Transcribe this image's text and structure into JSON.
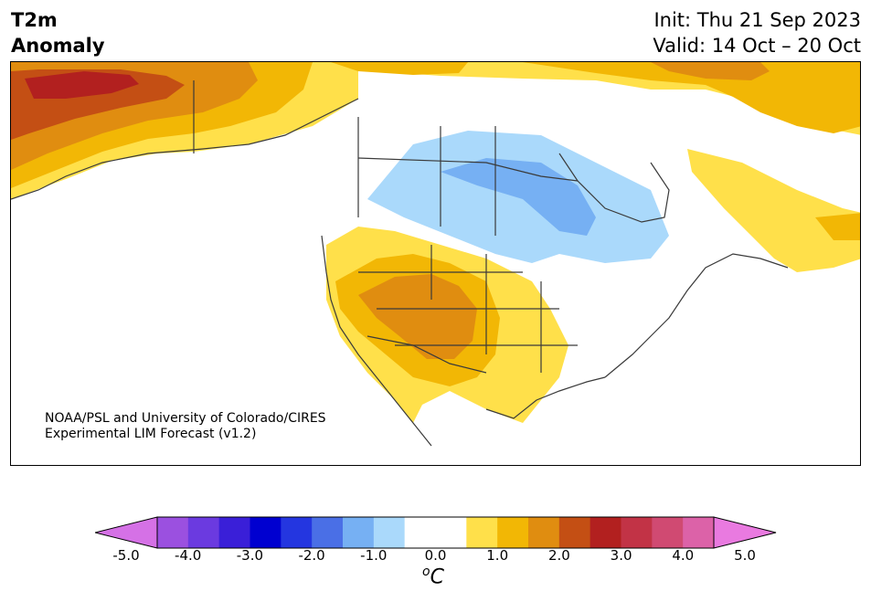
{
  "title": {
    "line1": "T2m",
    "line2": "Anomaly",
    "init": "Init: Thu 21 Sep 2023",
    "valid": "Valid: 14 Oct – 20 Oct"
  },
  "credit": {
    "line1": "NOAA/PSL and University of Colorado/CIRES",
    "line2": "Experimental LIM Forecast (v1.2)"
  },
  "colorbar": {
    "units_base": "C",
    "units_sup": "o",
    "ticks": [
      "-5.0",
      "-4.0",
      "-3.0",
      "-2.0",
      "-1.0",
      "0.0",
      "1.0",
      "2.0",
      "3.0",
      "4.0",
      "5.0"
    ],
    "under_color": "#d571e6",
    "over_color": "#e97ae0",
    "colors": [
      "#d571e6",
      "#9b50e0",
      "#6b3ae0",
      "#3a1fd8",
      "#0000d0",
      "#2436e0",
      "#4a6fe6",
      "#76b0f3",
      "#aad9fb",
      "#ffffff",
      "#ffffff",
      "#ffe04a",
      "#f2b705",
      "#e08d10",
      "#c44f14",
      "#b2201f",
      "#c23346",
      "#d04a72",
      "#dc62a8",
      "#e97ae0"
    ]
  },
  "map": {
    "region": "North America",
    "variable": "2m temperature anomaly",
    "features": [
      "warm anomaly Alaska",
      "warm anomaly Southwest US",
      "warm anomaly Canadian Arctic",
      "warm anomaly Atlantic Canada",
      "cool anomaly Northern Plains / Manitoba"
    ]
  }
}
